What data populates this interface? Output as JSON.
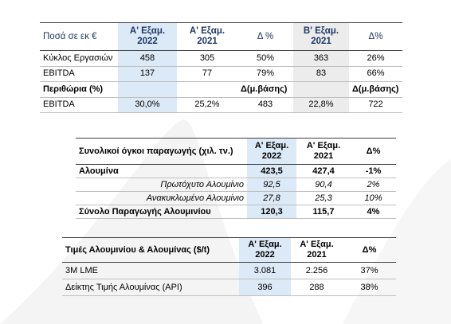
{
  "tables": [
    {
      "header": [
        [
          "Ποσά σε εκ €"
        ],
        [
          "Α' Εξαμ.",
          "2022"
        ],
        [
          "Α' Εξαμ.",
          "2021"
        ],
        [
          "Δ %"
        ],
        [
          "Β' Εξαμ.",
          "2021"
        ],
        [
          "Δ%"
        ]
      ],
      "rows": [
        [
          "Κύκλος Εργασιών",
          "458",
          "305",
          "50%",
          "363",
          "26%"
        ],
        [
          "EBITDA",
          "137",
          "77",
          "79%",
          "83",
          "66%"
        ],
        [
          "Περιθώρια (%)",
          null,
          null,
          "Δ(μ.βάσης)",
          null,
          "Δ(μ.βάσης)"
        ],
        [
          "EBITDA",
          "30,0%",
          "25,2%",
          "483",
          "22,8%",
          "722"
        ]
      ]
    },
    {
      "header": [
        [
          "Συνολικοί όγκοι παραγωγής (χιλ. τν.)"
        ],
        [
          "Α' Εξαμ.",
          "2022"
        ],
        [
          "Α' Εξαμ.",
          "2021"
        ],
        [
          "Δ%"
        ]
      ],
      "rows": [
        [
          "Αλουμίνα",
          "423,5",
          "427,4",
          "-1%"
        ],
        [
          "Πρωτόχυτο Αλουμίνιο",
          "92,5",
          "90,4",
          "2%"
        ],
        [
          "Ανακυκλωμένο Αλουμίνιο",
          "27,8",
          "25,3",
          "10%"
        ],
        [
          "Σύνολο Παραγωγής Αλουμινίου",
          "120,3",
          "115,7",
          "4%"
        ]
      ]
    },
    {
      "header": [
        [
          "Τιμές Αλουμινίου & Αλουμίνας ($/t)"
        ],
        [
          "Α' Εξαμ.",
          "2022"
        ],
        [
          "Α' Εξαμ.",
          "2021"
        ],
        [
          "Δ%"
        ]
      ],
      "rows": [
        [
          "3M LME",
          "3.081",
          "2.256",
          "37%"
        ],
        [
          "Δείκτης Τιμής Αλουμίνας (API)",
          "396",
          "288",
          "38%"
        ]
      ]
    }
  ]
}
